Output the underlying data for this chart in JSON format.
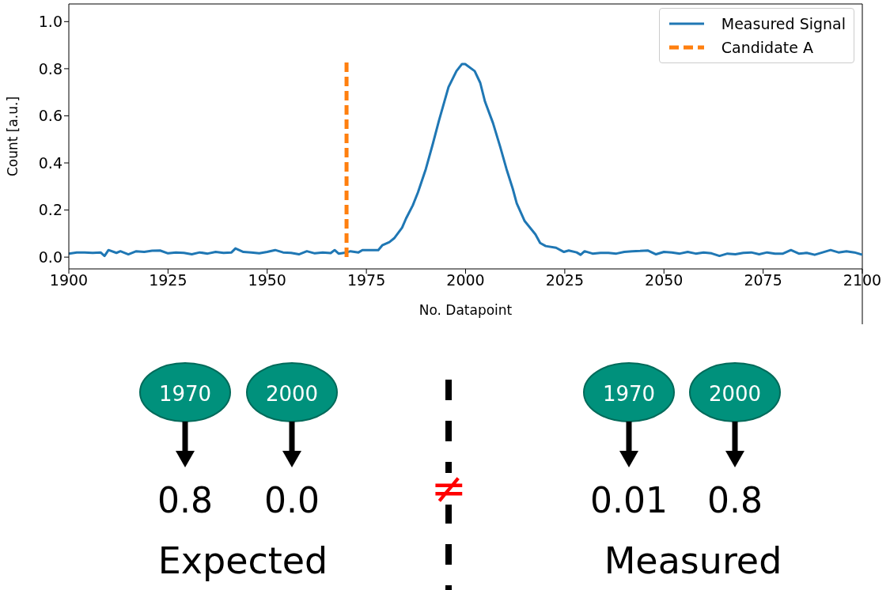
{
  "chart_data": {
    "type": "line",
    "xlabel": "No. Datapoint",
    "ylabel": "Count [a.u.]",
    "xlim": [
      1900,
      2100
    ],
    "xticks": [
      1900,
      1925,
      1950,
      1975,
      2000,
      2025,
      2050,
      2075,
      2100
    ],
    "ylim": [
      -0.05,
      1.075
    ],
    "yticks": [
      {
        "value": 0,
        "label": "0.0"
      },
      {
        "value": 0.2,
        "label": "0.2"
      },
      {
        "value": 0.4,
        "label": "0.4"
      },
      {
        "value": 0.6,
        "label": "0.6"
      },
      {
        "value": 0.8,
        "label": "0.8"
      },
      {
        "value": 1.0,
        "label": "1.0"
      }
    ],
    "legend": "top right",
    "marker": "none",
    "line_style": "solid",
    "series": [
      {
        "name": "Measured Signal",
        "color": "#1f77b4",
        "x": [
          1900,
          1902,
          1904,
          1906,
          1908,
          1909,
          1910,
          1912,
          1913,
          1915,
          1917,
          1919,
          1921,
          1923,
          1925,
          1927,
          1929,
          1931,
          1933,
          1935,
          1937,
          1939,
          1941,
          1942,
          1944,
          1946,
          1948,
          1950,
          1952,
          1954,
          1956,
          1958,
          1960,
          1962,
          1964,
          1966,
          1967,
          1968,
          1970,
          1971,
          1973,
          1974,
          1976,
          1978,
          1979,
          1980.8,
          1982,
          1984,
          1985,
          1986.7,
          1988,
          1990,
          1991.7,
          1993.3,
          1995.7,
          1997.7,
          1999.1,
          1999.9,
          2002.3,
          2003.7,
          2004.9,
          2006.9,
          2008.7,
          2010.3,
          2011.9,
          2012.9,
          2014.9,
          2017.6,
          2018.8,
          2020.2,
          2022.8,
          2024.8,
          2026,
          2028,
          2029,
          2030,
          2032,
          2034,
          2036,
          2038,
          2040,
          2042,
          2044,
          2046,
          2048,
          2050,
          2052,
          2054,
          2056,
          2058,
          2060,
          2062,
          2064,
          2066,
          2068,
          2070,
          2072,
          2074,
          2076,
          2078,
          2080,
          2082,
          2084,
          2086,
          2088,
          2090,
          2092,
          2094,
          2096,
          2098,
          2100
        ],
        "values": [
          0.015,
          0.02,
          0.02,
          0.018,
          0.02,
          0.005,
          0.03,
          0.018,
          0.025,
          0.012,
          0.025,
          0.022,
          0.027,
          0.028,
          0.016,
          0.02,
          0.018,
          0.012,
          0.02,
          0.015,
          0.022,
          0.018,
          0.02,
          0.037,
          0.022,
          0.02,
          0.016,
          0.022,
          0.03,
          0.02,
          0.018,
          0.012,
          0.025,
          0.016,
          0.02,
          0.017,
          0.03,
          0.015,
          0.02,
          0.025,
          0.02,
          0.03,
          0.03,
          0.03,
          0.05,
          0.064,
          0.08,
          0.125,
          0.164,
          0.22,
          0.275,
          0.375,
          0.478,
          0.58,
          0.722,
          0.79,
          0.82,
          0.82,
          0.79,
          0.74,
          0.66,
          0.57,
          0.47,
          0.375,
          0.29,
          0.228,
          0.153,
          0.097,
          0.06,
          0.047,
          0.04,
          0.022,
          0.028,
          0.02,
          0.01,
          0.025,
          0.015,
          0.018,
          0.018,
          0.015,
          0.022,
          0.025,
          0.026,
          0.028,
          0.012,
          0.022,
          0.02,
          0.015,
          0.022,
          0.015,
          0.02,
          0.016,
          0.005,
          0.015,
          0.012,
          0.018,
          0.02,
          0.012,
          0.02,
          0.015,
          0.015,
          0.03,
          0.015,
          0.018,
          0.01,
          0.02,
          0.03,
          0.02,
          0.025,
          0.02,
          0.01
        ]
      },
      {
        "name": "Candidate A",
        "color": "#ff7f0e",
        "line_style": "dashed",
        "x": [
          1970,
          1970
        ],
        "values": [
          0,
          0.84
        ]
      }
    ],
    "annotations": [
      "1970",
      "2000",
      "0.8",
      "0.0",
      "Expected",
      "≠",
      "1970",
      "2000",
      "0.01",
      "0.8",
      "Measured"
    ]
  }
}
